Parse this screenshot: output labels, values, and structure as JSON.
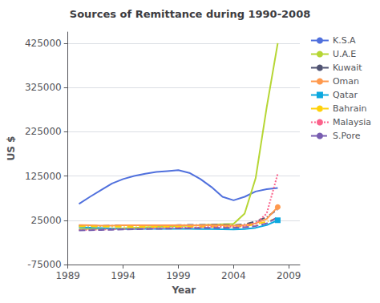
{
  "chart_data": {
    "type": "line",
    "title": "Sources of Remittance during 1990-2008",
    "xlabel": "Year",
    "ylabel": "US $",
    "xlim": [
      1989,
      2010
    ],
    "ylim": [
      -75000,
      450000
    ],
    "xticks": [
      1989,
      1994,
      1999,
      2004,
      2009
    ],
    "yticks": [
      -75000,
      25000,
      125000,
      225000,
      325000,
      425000
    ],
    "grid": true,
    "legend": "right",
    "x": [
      1990,
      1991,
      1992,
      1993,
      1994,
      1995,
      1996,
      1997,
      1998,
      1999,
      2000,
      2001,
      2002,
      2003,
      2004,
      2005,
      2006,
      2007,
      2008
    ],
    "series": [
      {
        "name": "K.S.A",
        "line_style": "solid",
        "values": [
          62000,
          78000,
          93000,
          108000,
          118000,
          125000,
          130000,
          134000,
          136000,
          138000,
          132000,
          118000,
          100000,
          78000,
          70000,
          78000,
          90000,
          95000,
          98000
        ]
      },
      {
        "name": "U.A.E",
        "line_style": "solid",
        "values": [
          5000,
          5500,
          6000,
          6500,
          7000,
          8000,
          9000,
          10000,
          11000,
          12000,
          13000,
          14000,
          15000,
          16000,
          17000,
          40000,
          120000,
          280000,
          425000
        ]
      },
      {
        "name": "Kuwait",
        "line_style": "dashdot",
        "values": [
          13000,
          12500,
          12000,
          13000,
          13500,
          13500,
          13500,
          13500,
          13500,
          14000,
          14500,
          14500,
          15000,
          15000,
          14000,
          16000,
          22000,
          32000,
          50000
        ]
      },
      {
        "name": "Oman",
        "line_style": "solid",
        "marker": "circle",
        "values": [
          14000,
          13500,
          13000,
          13000,
          13500,
          13500,
          13500,
          13500,
          13500,
          13500,
          13500,
          13500,
          14000,
          13500,
          13000,
          14000,
          18000,
          28000,
          55000
        ]
      },
      {
        "name": "Qatar",
        "line_style": "solid",
        "marker": "square",
        "values": [
          9000,
          8500,
          7500,
          6000,
          5000,
          5000,
          5500,
          5500,
          5500,
          5500,
          5500,
          5000,
          5000,
          4500,
          4000,
          5000,
          8000,
          14000,
          25000
        ]
      },
      {
        "name": "Bahrain",
        "line_style": "dashdot",
        "values": [
          11000,
          11000,
          10500,
          10500,
          10500,
          10000,
          10000,
          10000,
          10000,
          10000,
          10000,
          10000,
          10000,
          10000,
          9500,
          12000,
          16000,
          22000,
          30000
        ]
      },
      {
        "name": "Malaysia",
        "line_style": "dotted",
        "values": [
          3000,
          3500,
          4000,
          4500,
          5000,
          5500,
          6000,
          7000,
          7500,
          8000,
          8500,
          9000,
          10000,
          10000,
          10000,
          12000,
          18000,
          40000,
          130000
        ]
      },
      {
        "name": "S.Pore",
        "line_style": "dashed",
        "values": [
          2000,
          2500,
          3000,
          3500,
          4000,
          4500,
          5000,
          5500,
          6000,
          6500,
          7000,
          7500,
          8000,
          8000,
          8000,
          9000,
          12000,
          18000,
          32000
        ]
      }
    ]
  }
}
